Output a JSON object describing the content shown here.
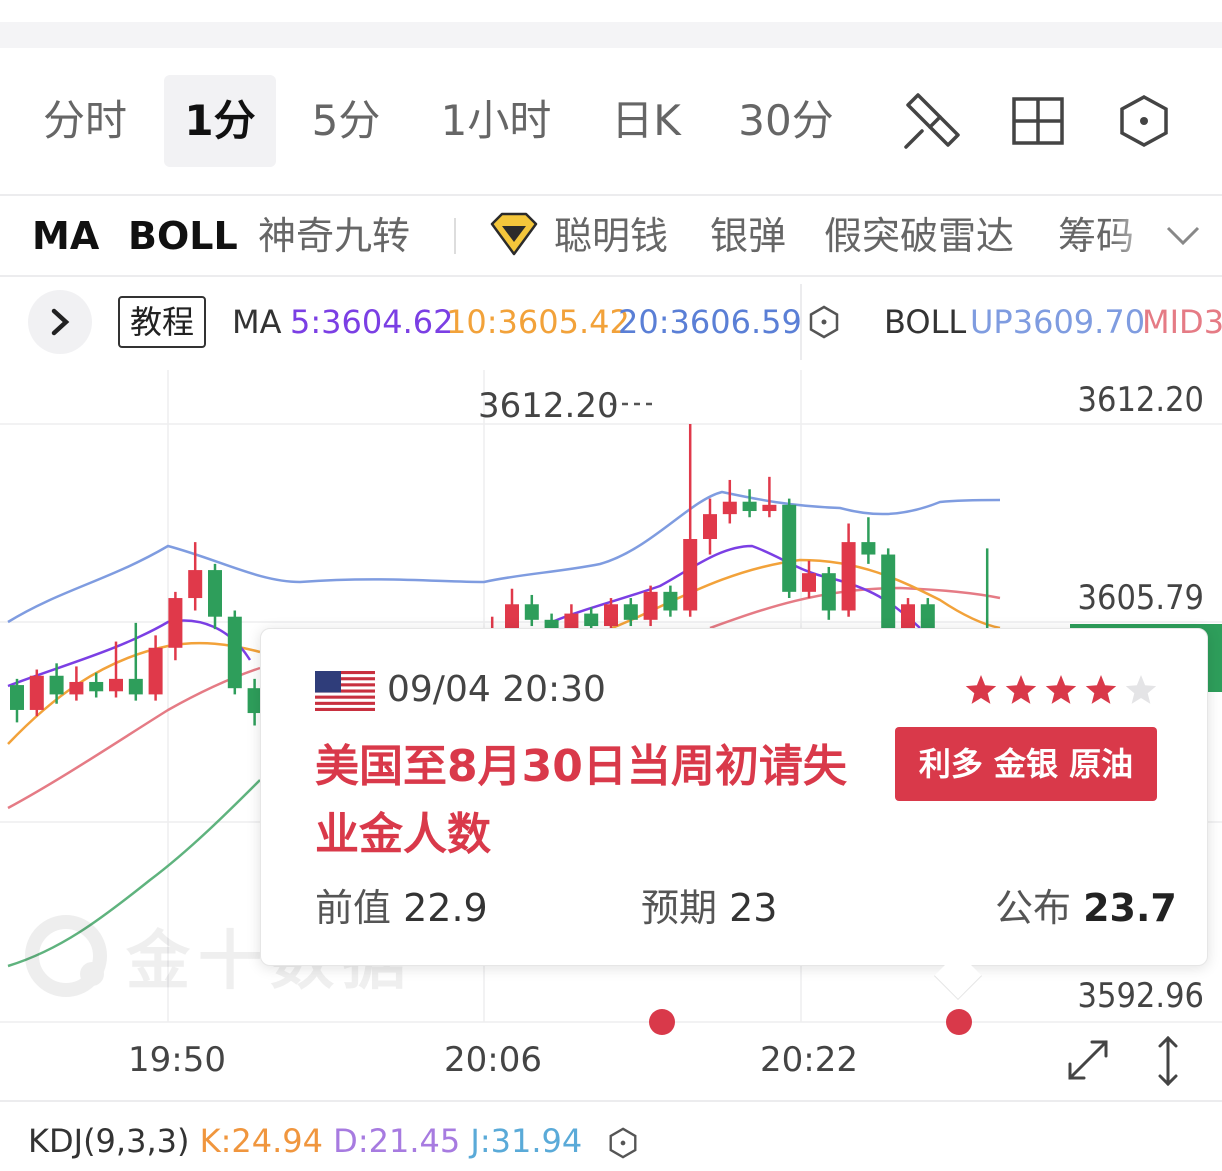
{
  "periods": {
    "items": [
      "分时",
      "1分",
      "5分",
      "1小时",
      "日K",
      "30分"
    ],
    "active_index": 1
  },
  "tools": {
    "draw_icon": "pen-ruler-icon",
    "layout_icon": "grid-icon",
    "settings_icon": "hexagon-settings-icon"
  },
  "indicators": {
    "items": [
      "MA",
      "BOLL",
      "神奇九转",
      "聪明钱",
      "银弹",
      "假突破雷达",
      "筹码"
    ],
    "active": [
      "MA",
      "BOLL"
    ],
    "diamond_icon": "diamond-icon",
    "more_icon": "chevron-down-icon"
  },
  "ma_row": {
    "tutorial_label": "教程",
    "ma_label": "MA",
    "ma5": "5:3604.62",
    "ma10": "10:3605.42",
    "ma20": "20:3606.59",
    "boll_label": "BOLL",
    "boll_up": "UP3609.70",
    "boll_mid": "MID3",
    "colors": {
      "ma5": "#7b3fe4",
      "ma10": "#f2a23a",
      "ma20": "#5a7fd6",
      "boll_up": "#7f9ce0",
      "boll_mid": "#e57b85"
    }
  },
  "chart_data": {
    "type": "candlestick",
    "high_marker": "3612.20",
    "y_ticks": [
      "3612.20",
      "3605.79",
      "3592.96"
    ],
    "x_ticks": [
      "19:50",
      "20:06",
      "20:22"
    ],
    "ylim": [
      3592.96,
      3612.2
    ],
    "colors": {
      "up": "#e0394a",
      "down": "#2e9e5b"
    },
    "candles_visible_note_free": true,
    "candles": [
      {
        "t": 0,
        "o": 3603.8,
        "c": 3603.0,
        "h": 3604.0,
        "l": 3602.6
      },
      {
        "t": 1,
        "o": 3603.0,
        "c": 3604.1,
        "h": 3604.3,
        "l": 3602.8
      },
      {
        "t": 2,
        "o": 3604.1,
        "c": 3603.5,
        "h": 3604.5,
        "l": 3603.2
      },
      {
        "t": 3,
        "o": 3603.5,
        "c": 3603.9,
        "h": 3604.4,
        "l": 3603.3
      },
      {
        "t": 4,
        "o": 3603.9,
        "c": 3603.6,
        "h": 3604.2,
        "l": 3603.4
      },
      {
        "t": 5,
        "o": 3603.6,
        "c": 3604.0,
        "h": 3605.2,
        "l": 3603.4
      },
      {
        "t": 6,
        "o": 3604.0,
        "c": 3603.5,
        "h": 3605.8,
        "l": 3603.3
      },
      {
        "t": 7,
        "o": 3603.5,
        "c": 3605.0,
        "h": 3605.4,
        "l": 3603.3
      },
      {
        "t": 8,
        "o": 3605.0,
        "c": 3606.6,
        "h": 3606.8,
        "l": 3604.6
      },
      {
        "t": 9,
        "o": 3606.6,
        "c": 3607.5,
        "h": 3608.4,
        "l": 3606.2
      },
      {
        "t": 10,
        "o": 3607.5,
        "c": 3606.0,
        "h": 3607.7,
        "l": 3605.6
      },
      {
        "t": 11,
        "o": 3606.0,
        "c": 3603.7,
        "h": 3606.2,
        "l": 3603.5
      },
      {
        "t": 12,
        "o": 3603.7,
        "c": 3602.9,
        "h": 3604.0,
        "l": 3602.5
      },
      {
        "t": 13,
        "o": 3602.9,
        "c": 3602.2,
        "h": 3603.2,
        "l": 3601.8
      },
      {
        "t": 24,
        "o": 3604.8,
        "c": 3605.6,
        "h": 3606.0,
        "l": 3604.6
      },
      {
        "t": 25,
        "o": 3605.6,
        "c": 3606.4,
        "h": 3606.9,
        "l": 3605.4
      },
      {
        "t": 26,
        "o": 3606.4,
        "c": 3605.9,
        "h": 3606.7,
        "l": 3605.7
      },
      {
        "t": 27,
        "o": 3605.9,
        "c": 3605.5,
        "h": 3606.1,
        "l": 3605.3
      },
      {
        "t": 28,
        "o": 3605.5,
        "c": 3606.1,
        "h": 3606.4,
        "l": 3605.3
      },
      {
        "t": 29,
        "o": 3606.1,
        "c": 3605.7,
        "h": 3606.3,
        "l": 3605.5
      },
      {
        "t": 30,
        "o": 3605.7,
        "c": 3606.4,
        "h": 3606.6,
        "l": 3605.5
      },
      {
        "t": 31,
        "o": 3606.4,
        "c": 3605.9,
        "h": 3606.6,
        "l": 3605.7
      },
      {
        "t": 32,
        "o": 3605.9,
        "c": 3606.8,
        "h": 3607.0,
        "l": 3605.7
      },
      {
        "t": 33,
        "o": 3606.8,
        "c": 3606.2,
        "h": 3607.0,
        "l": 3606.0
      },
      {
        "t": 34,
        "o": 3606.2,
        "c": 3608.5,
        "h": 3612.2,
        "l": 3606.0
      },
      {
        "t": 35,
        "o": 3608.5,
        "c": 3609.3,
        "h": 3609.8,
        "l": 3608.0
      },
      {
        "t": 36,
        "o": 3609.3,
        "c": 3609.7,
        "h": 3610.4,
        "l": 3609.0
      },
      {
        "t": 37,
        "o": 3609.7,
        "c": 3609.4,
        "h": 3610.1,
        "l": 3609.2
      },
      {
        "t": 38,
        "o": 3609.4,
        "c": 3609.6,
        "h": 3610.5,
        "l": 3609.2
      },
      {
        "t": 39,
        "o": 3609.6,
        "c": 3606.8,
        "h": 3609.8,
        "l": 3606.6
      },
      {
        "t": 40,
        "o": 3606.8,
        "c": 3607.4,
        "h": 3607.8,
        "l": 3606.6
      },
      {
        "t": 41,
        "o": 3607.4,
        "c": 3606.2,
        "h": 3607.6,
        "l": 3605.9
      },
      {
        "t": 42,
        "o": 3606.2,
        "c": 3608.4,
        "h": 3609.0,
        "l": 3606.0
      },
      {
        "t": 43,
        "o": 3608.4,
        "c": 3608.0,
        "h": 3609.2,
        "l": 3607.7
      },
      {
        "t": 44,
        "o": 3608.0,
        "c": 3605.4,
        "h": 3608.2,
        "l": 3605.2
      },
      {
        "t": 45,
        "o": 3605.4,
        "c": 3606.4,
        "h": 3606.6,
        "l": 3605.2
      },
      {
        "t": 46,
        "o": 3606.4,
        "c": 3605.0,
        "h": 3606.6,
        "l": 3604.8
      },
      {
        "t": 49,
        "o": 3605.2,
        "c": 3604.6,
        "h": 3608.2,
        "l": 3604.4
      }
    ]
  },
  "popup": {
    "flag_icon": "us-flag-icon",
    "date": "09/04 20:30",
    "stars_total": 5,
    "stars_filled": 4,
    "title": "美国至8月30日当周初请失业金人数",
    "badge": "利多 金银 原油",
    "prev_label": "前值",
    "prev_value": "22.9",
    "expected_label": "预期",
    "expected_value": "23",
    "actual_label": "公布",
    "actual_value": "23.7",
    "color": "#d9394a"
  },
  "watermark": "金十数据",
  "kdj": {
    "label": "KDJ(9,3,3)",
    "k": "K:24.94",
    "d": "D:21.45",
    "j": "J:31.94",
    "colors": {
      "k": "#f0963e",
      "d": "#a77be0",
      "j": "#5aaad8"
    }
  }
}
